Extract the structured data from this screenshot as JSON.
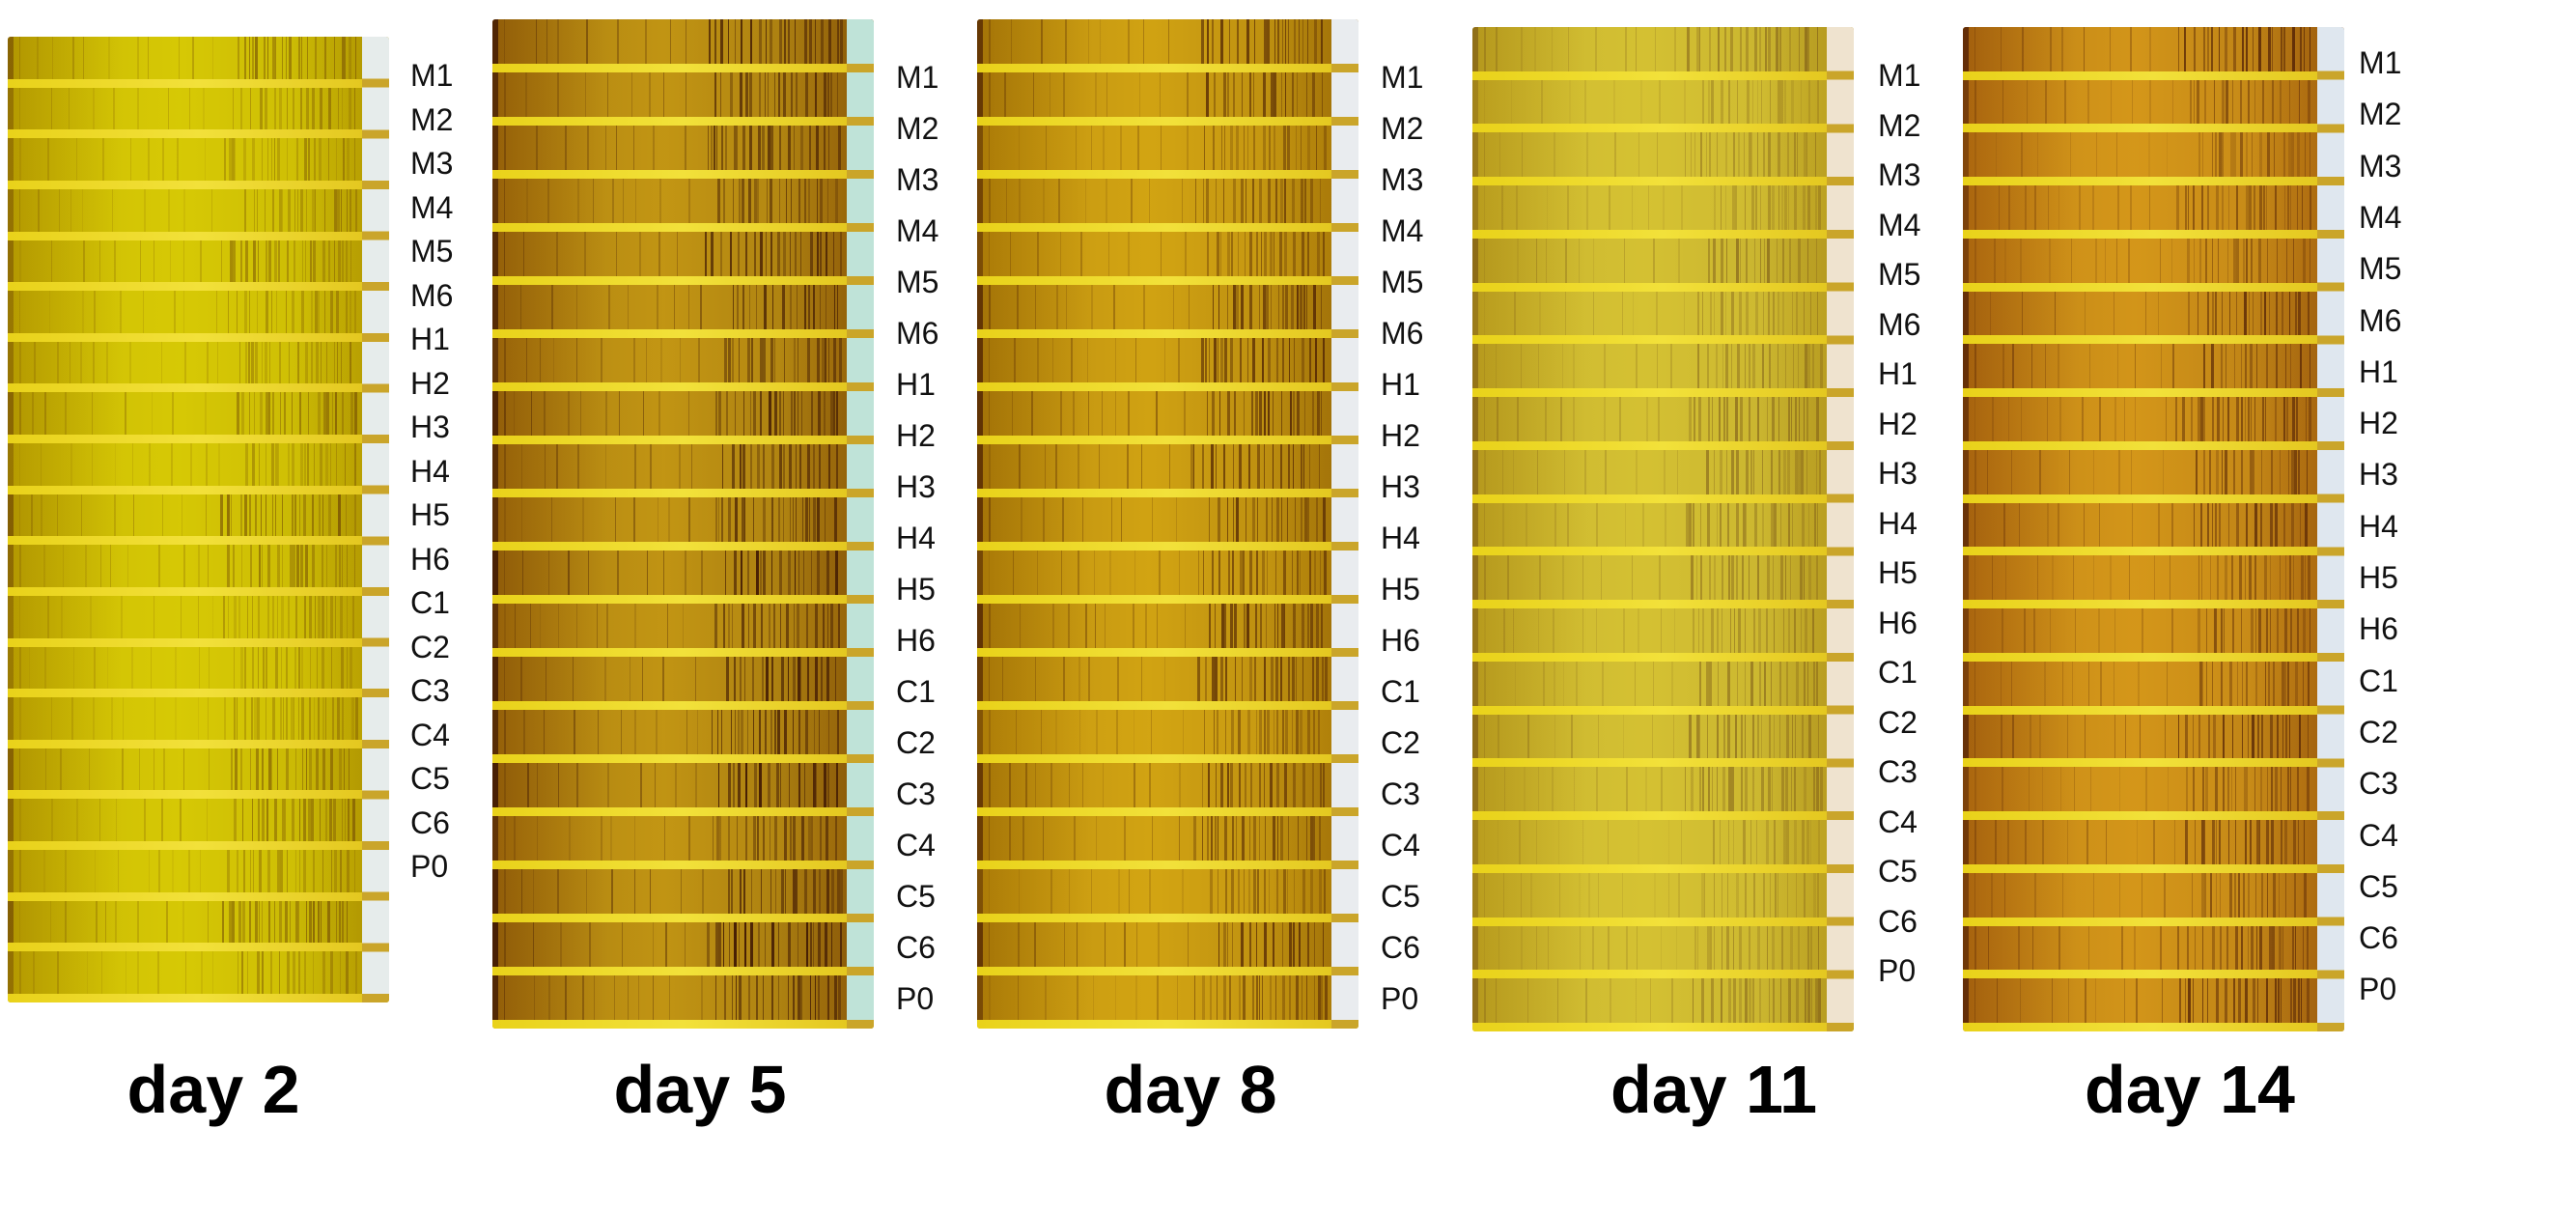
{
  "lane_labels": [
    "M1",
    "M2",
    "M3",
    "M4",
    "M5",
    "M6",
    "H1",
    "H2",
    "H3",
    "H4",
    "H5",
    "H6",
    "C1",
    "C2",
    "C3",
    "C4",
    "C5",
    "C6",
    "P0"
  ],
  "panels": [
    {
      "day": "day 2",
      "gel_base": "#d9cc05",
      "gel_edge": "#bda400",
      "band": "#5a2b05",
      "intensity": 0.45,
      "well": "#e6eceb",
      "label_color": "#111111"
    },
    {
      "day": "day 5",
      "gel_base": "#c79a14",
      "gel_edge": "#a8700a",
      "band": "#3d1603",
      "intensity": 0.75,
      "well": "#bfe3d8",
      "label_color": "#111111"
    },
    {
      "day": "day 8",
      "gel_base": "#d6a813",
      "gel_edge": "#b98808",
      "band": "#4a1d03",
      "intensity": 0.65,
      "well": "#e9ecef",
      "label_color": "#111111"
    },
    {
      "day": "day 11",
      "gel_base": "#d7c433",
      "gel_edge": "#c0a41e",
      "band": "#5b3410",
      "intensity": 0.38,
      "well": "#efe3cf",
      "label_color": "#111111"
    },
    {
      "day": "day 14",
      "gel_base": "#d89a1a",
      "gel_edge": "#b87010",
      "band": "#4a1a04",
      "intensity": 0.65,
      "well": "#dfe7ef",
      "label_color": "#111111"
    }
  ]
}
